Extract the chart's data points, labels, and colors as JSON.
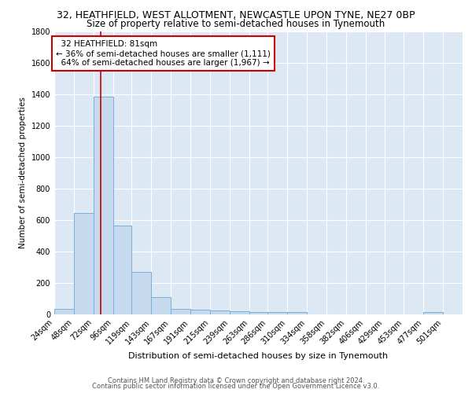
{
  "title_line1": "32, HEATHFIELD, WEST ALLOTMENT, NEWCASTLE UPON TYNE, NE27 0BP",
  "title_line2": "Size of property relative to semi-detached houses in Tynemouth",
  "xlabel": "Distribution of semi-detached houses by size in Tynemouth",
  "ylabel": "Number of semi-detached properties",
  "footer_line1": "Contains HM Land Registry data © Crown copyright and database right 2024.",
  "footer_line2": "Contains public sector information licensed under the Open Government Licence v3.0.",
  "property_size": 81,
  "property_label": "32 HEATHFIELD: 81sqm",
  "smaller_pct": 36,
  "smaller_count": 1111,
  "larger_pct": 64,
  "larger_count": 1967,
  "bins": [
    24,
    48,
    72,
    96,
    119,
    143,
    167,
    191,
    215,
    239,
    263,
    286,
    310,
    334,
    358,
    382,
    406,
    429,
    453,
    477,
    501
  ],
  "counts": [
    35,
    645,
    1385,
    565,
    270,
    110,
    35,
    30,
    25,
    20,
    15,
    15,
    15,
    0,
    0,
    0,
    0,
    0,
    0,
    15,
    0
  ],
  "bar_color": "#c5d9ef",
  "bar_edge_color": "#7bafd4",
  "red_line_color": "#cc0000",
  "annotation_box_facecolor": "#ffffff",
  "annotation_box_edgecolor": "#cc0000",
  "bg_color": "#dde8f5",
  "grid_color": "#ffffff",
  "ylim": [
    0,
    1800
  ],
  "yticks": [
    0,
    200,
    400,
    600,
    800,
    1000,
    1200,
    1400,
    1600,
    1800
  ],
  "title1_fontsize": 9,
  "title2_fontsize": 8.5,
  "ylabel_fontsize": 7.5,
  "xlabel_fontsize": 8,
  "tick_fontsize": 7,
  "footer_fontsize": 6
}
